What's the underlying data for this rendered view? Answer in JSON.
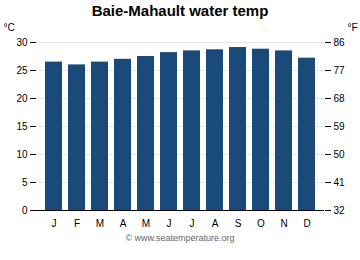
{
  "chart_data": {
    "type": "bar",
    "title": "Baie-Mahault water temp",
    "caption": "© www.seatemperature.org",
    "categories": [
      "J",
      "F",
      "M",
      "A",
      "M",
      "J",
      "J",
      "A",
      "S",
      "O",
      "N",
      "D"
    ],
    "values": [
      26.5,
      26.0,
      26.5,
      27.0,
      27.5,
      28.2,
      28.5,
      28.7,
      29.1,
      28.8,
      28.5,
      27.2
    ],
    "color": "#1a4a7a",
    "ylabel": "°C",
    "ylim": [
      0,
      30
    ],
    "yticks": [
      0,
      5,
      10,
      15,
      20,
      25,
      30
    ],
    "y2label": "°F",
    "y2lim": [
      32,
      86
    ],
    "y2ticks": [
      32,
      41,
      50,
      59,
      68,
      77,
      86
    ],
    "grid": true
  }
}
